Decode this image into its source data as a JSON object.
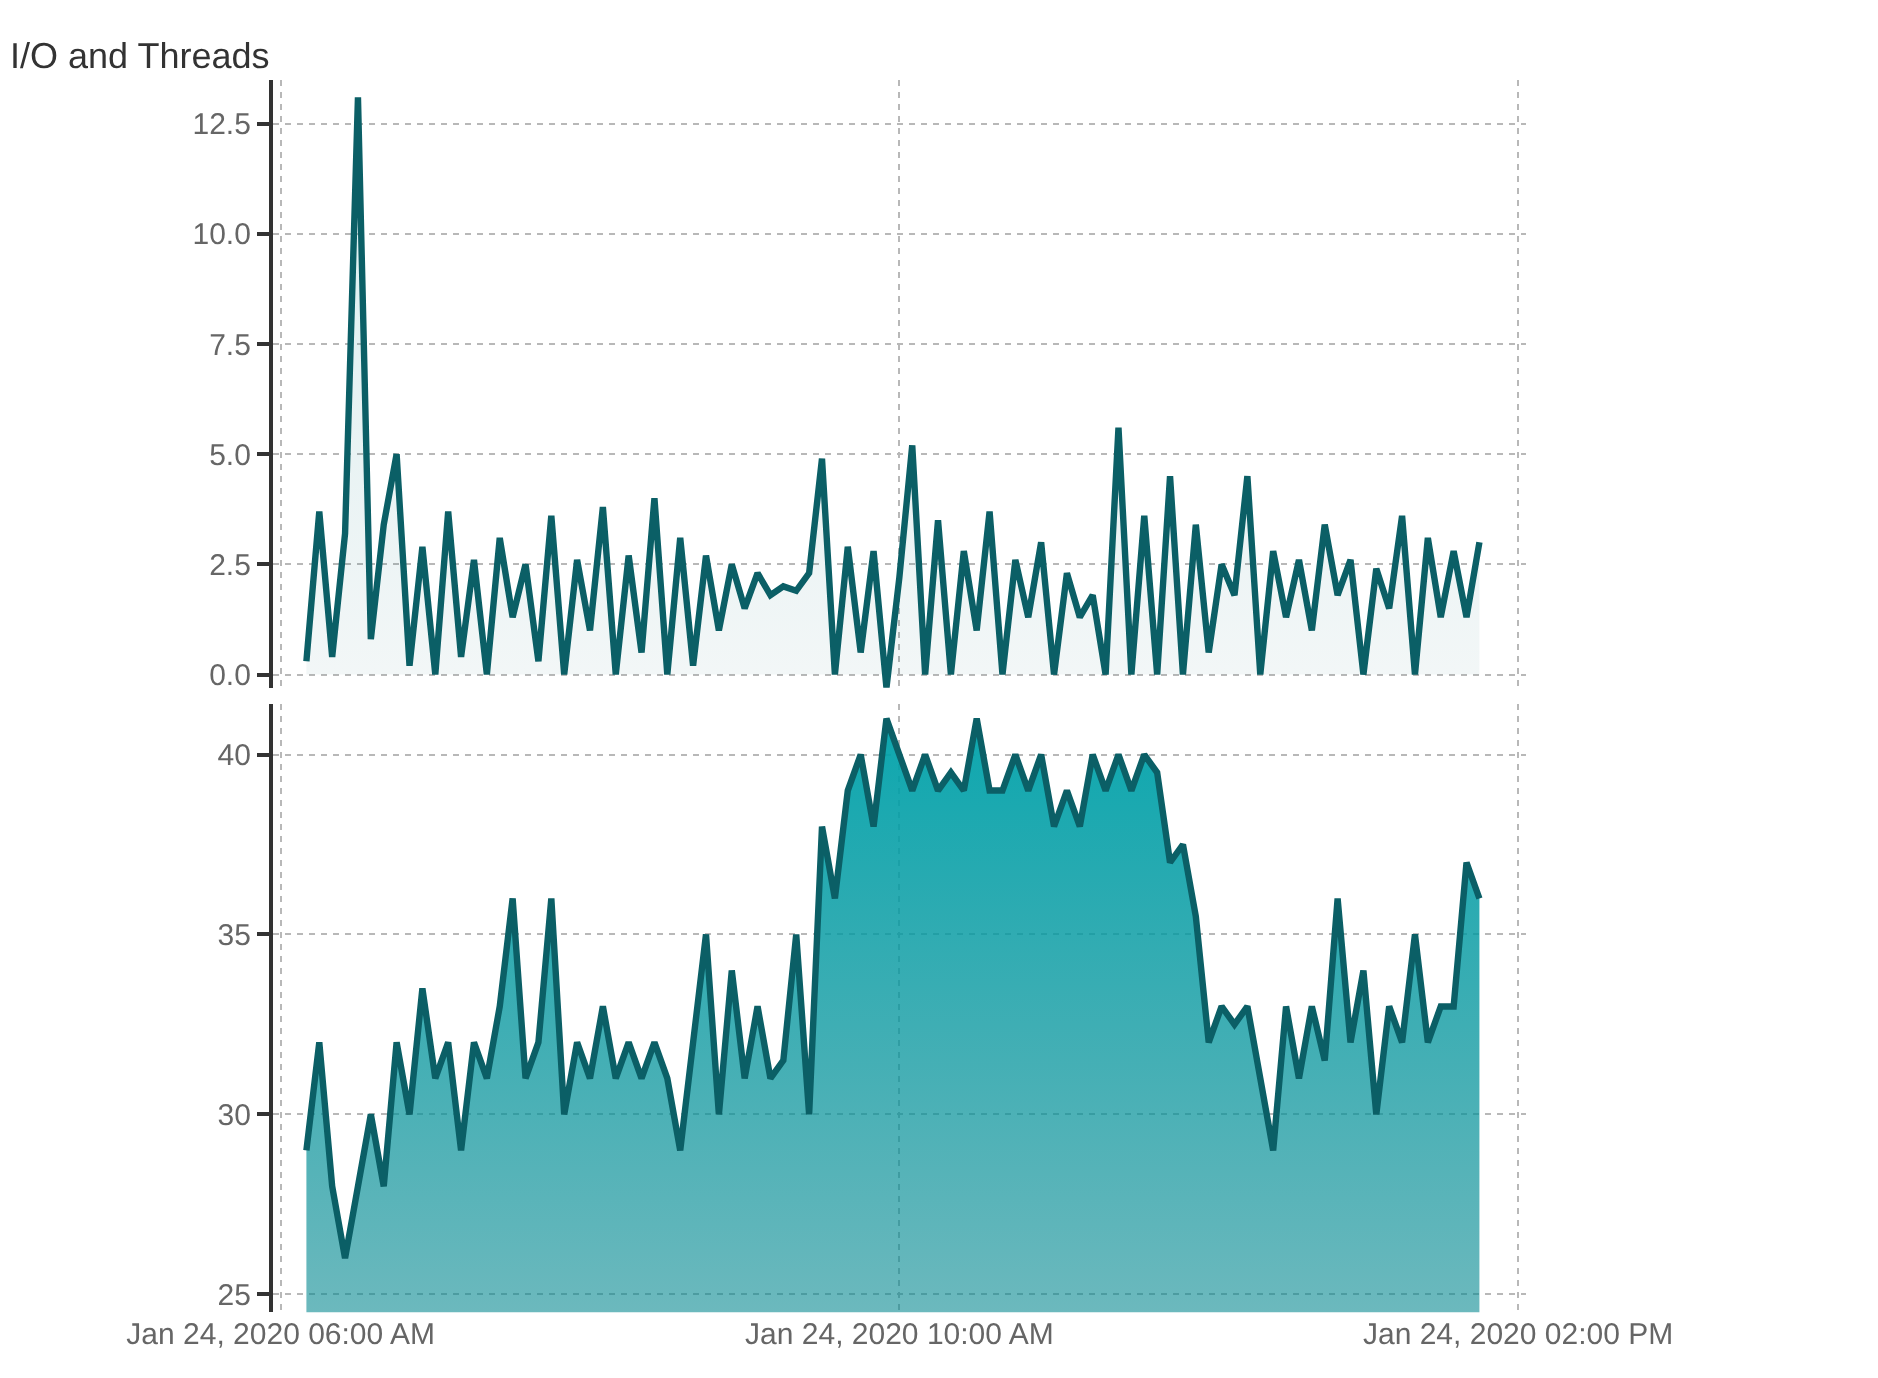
{
  "chart_data": [
    {
      "type": "area",
      "title": "I/O and Threads",
      "grid": true,
      "line_style": "solid",
      "marker": "none",
      "tick_labels": "y",
      "xlim": [
        "2020-01-24T05:57",
        "2020-01-24T14:03"
      ],
      "xticks": [
        {
          "value": "2020-01-24T06:00",
          "label": null
        },
        {
          "value": "2020-01-24T10:00",
          "label": null
        },
        {
          "value": "2020-01-24T14:00",
          "label": null
        }
      ],
      "ylim": [
        -0.3,
        13.5
      ],
      "yticks": [
        {
          "value": 0,
          "label": "0.0"
        },
        {
          "value": 2.5,
          "label": "2.5"
        },
        {
          "value": 5,
          "label": "5.0"
        },
        {
          "value": 7.5,
          "label": "7.5"
        },
        {
          "value": 10,
          "label": "10.0"
        },
        {
          "value": 12.5,
          "label": "12.5"
        }
      ],
      "series": [
        {
          "color": "#0b5f66",
          "values": [
            0.3,
            3.7,
            0.4,
            3.2,
            13.1,
            0.8,
            3.4,
            5.0,
            0.2,
            2.9,
            0.0,
            3.7,
            0.4,
            2.6,
            0.0,
            3.1,
            1.3,
            2.5,
            0.3,
            3.6,
            0.0,
            2.6,
            1.0,
            3.8,
            0.0,
            2.7,
            0.5,
            4.0,
            0.0,
            3.1,
            0.2,
            2.7,
            1.0,
            2.5,
            1.5,
            2.3,
            1.8,
            2.0,
            1.9,
            2.3,
            4.9,
            0.0,
            2.9,
            0.5,
            2.8,
            -0.3,
            2.2,
            5.2,
            0.0,
            3.5,
            0.0,
            2.8,
            1.0,
            3.7,
            0.0,
            2.6,
            1.3,
            3.0,
            0.0,
            2.3,
            1.3,
            1.8,
            0.0,
            5.6,
            0.0,
            3.6,
            0.0,
            4.5,
            0.0,
            3.4,
            0.5,
            2.5,
            1.8,
            4.5,
            0.0,
            2.8,
            1.3,
            2.6,
            1.0,
            3.4,
            1.8,
            2.6,
            0.0,
            2.4,
            1.5,
            3.6,
            0.0,
            3.1,
            1.3,
            2.8,
            1.3,
            3.0
          ]
        }
      ],
      "x": [
        "2020-01-24T06:10",
        "2020-01-24T06:15",
        "2020-01-24T06:20",
        "2020-01-24T06:25",
        "2020-01-24T06:30",
        "2020-01-24T06:35",
        "2020-01-24T06:40",
        "2020-01-24T06:45",
        "2020-01-24T06:50",
        "2020-01-24T06:55",
        "2020-01-24T07:00",
        "2020-01-24T07:05",
        "2020-01-24T07:10",
        "2020-01-24T07:15",
        "2020-01-24T07:20",
        "2020-01-24T07:25",
        "2020-01-24T07:30",
        "2020-01-24T07:35",
        "2020-01-24T07:40",
        "2020-01-24T07:45",
        "2020-01-24T07:50",
        "2020-01-24T07:55",
        "2020-01-24T08:00",
        "2020-01-24T08:05",
        "2020-01-24T08:10",
        "2020-01-24T08:15",
        "2020-01-24T08:20",
        "2020-01-24T08:25",
        "2020-01-24T08:30",
        "2020-01-24T08:35",
        "2020-01-24T08:40",
        "2020-01-24T08:45",
        "2020-01-24T08:50",
        "2020-01-24T08:55",
        "2020-01-24T09:00",
        "2020-01-24T09:05",
        "2020-01-24T09:10",
        "2020-01-24T09:15",
        "2020-01-24T09:20",
        "2020-01-24T09:25",
        "2020-01-24T09:30",
        "2020-01-24T09:35",
        "2020-01-24T09:40",
        "2020-01-24T09:45",
        "2020-01-24T09:50",
        "2020-01-24T09:55",
        "2020-01-24T10:00",
        "2020-01-24T10:05",
        "2020-01-24T10:10",
        "2020-01-24T10:15",
        "2020-01-24T10:20",
        "2020-01-24T10:25",
        "2020-01-24T10:30",
        "2020-01-24T10:35",
        "2020-01-24T10:40",
        "2020-01-24T10:45",
        "2020-01-24T10:50",
        "2020-01-24T10:55",
        "2020-01-24T11:00",
        "2020-01-24T11:05",
        "2020-01-24T11:10",
        "2020-01-24T11:15",
        "2020-01-24T11:20",
        "2020-01-24T11:25",
        "2020-01-24T11:30",
        "2020-01-24T11:35",
        "2020-01-24T11:40",
        "2020-01-24T11:45",
        "2020-01-24T11:50",
        "2020-01-24T11:55",
        "2020-01-24T12:00",
        "2020-01-24T12:05",
        "2020-01-24T12:10",
        "2020-01-24T12:15",
        "2020-01-24T12:20",
        "2020-01-24T12:25",
        "2020-01-24T12:30",
        "2020-01-24T12:35",
        "2020-01-24T12:40",
        "2020-01-24T12:45",
        "2020-01-24T12:50",
        "2020-01-24T12:55",
        "2020-01-24T13:00",
        "2020-01-24T13:05",
        "2020-01-24T13:10",
        "2020-01-24T13:15",
        "2020-01-24T13:20",
        "2020-01-24T13:25",
        "2020-01-24T13:30",
        "2020-01-24T13:35",
        "2020-01-24T13:40",
        "2020-01-24T13:45"
      ]
    },
    {
      "type": "area",
      "grid": true,
      "line_style": "solid",
      "marker": "none",
      "xlim": [
        "2020-01-24T05:57",
        "2020-01-24T14:03"
      ],
      "xticks": [
        {
          "value": "2020-01-24T06:00",
          "label": "Jan 24, 2020 06:00 AM"
        },
        {
          "value": "2020-01-24T10:00",
          "label": "Jan 24, 2020 10:00 AM"
        },
        {
          "value": "2020-01-24T14:00",
          "label": "Jan 24, 2020 02:00 PM"
        }
      ],
      "ylim": [
        24.5,
        41.4
      ],
      "yticks": [
        25,
        30,
        35,
        40
      ],
      "series": [
        {
          "color": "#0b5f66",
          "values": [
            29,
            32,
            28,
            26,
            28,
            30,
            28,
            32,
            30,
            33.5,
            31,
            32,
            29,
            32,
            31,
            33,
            36,
            31,
            32,
            36,
            30,
            32,
            31,
            33,
            31,
            32,
            31,
            32,
            31,
            29,
            32,
            35,
            30,
            34,
            31,
            33,
            31,
            31.5,
            35,
            30,
            38,
            36,
            39,
            40,
            38,
            41,
            40,
            39,
            40,
            39,
            39.5,
            39,
            41,
            39,
            39,
            40,
            39,
            40,
            38,
            39,
            38,
            40,
            39,
            40,
            39,
            40,
            39.5,
            37,
            37.5,
            35.5,
            32,
            33,
            32.5,
            33,
            31,
            29,
            33,
            31,
            33,
            31.5,
            36,
            32,
            34,
            30,
            33,
            32,
            35,
            32,
            33,
            33,
            37,
            36
          ]
        }
      ],
      "x": [
        "2020-01-24T06:10",
        "2020-01-24T06:15",
        "2020-01-24T06:20",
        "2020-01-24T06:25",
        "2020-01-24T06:30",
        "2020-01-24T06:35",
        "2020-01-24T06:40",
        "2020-01-24T06:45",
        "2020-01-24T06:50",
        "2020-01-24T06:55",
        "2020-01-24T07:00",
        "2020-01-24T07:05",
        "2020-01-24T07:10",
        "2020-01-24T07:15",
        "2020-01-24T07:20",
        "2020-01-24T07:25",
        "2020-01-24T07:30",
        "2020-01-24T07:35",
        "2020-01-24T07:40",
        "2020-01-24T07:45",
        "2020-01-24T07:50",
        "2020-01-24T07:55",
        "2020-01-24T08:00",
        "2020-01-24T08:05",
        "2020-01-24T08:10",
        "2020-01-24T08:15",
        "2020-01-24T08:20",
        "2020-01-24T08:25",
        "2020-01-24T08:30",
        "2020-01-24T08:35",
        "2020-01-24T08:40",
        "2020-01-24T08:45",
        "2020-01-24T08:50",
        "2020-01-24T08:55",
        "2020-01-24T09:00",
        "2020-01-24T09:05",
        "2020-01-24T09:10",
        "2020-01-24T09:15",
        "2020-01-24T09:20",
        "2020-01-24T09:25",
        "2020-01-24T09:30",
        "2020-01-24T09:35",
        "2020-01-24T09:40",
        "2020-01-24T09:45",
        "2020-01-24T09:50",
        "2020-01-24T09:55",
        "2020-01-24T10:00",
        "2020-01-24T10:05",
        "2020-01-24T10:10",
        "2020-01-24T10:15",
        "2020-01-24T10:20",
        "2020-01-24T10:25",
        "2020-01-24T10:30",
        "2020-01-24T10:35",
        "2020-01-24T10:40",
        "2020-01-24T10:45",
        "2020-01-24T10:50",
        "2020-01-24T10:55",
        "2020-01-24T11:00",
        "2020-01-24T11:05",
        "2020-01-24T11:10",
        "2020-01-24T11:15",
        "2020-01-24T11:20",
        "2020-01-24T11:25",
        "2020-01-24T11:30",
        "2020-01-24T11:35",
        "2020-01-24T11:40",
        "2020-01-24T11:45",
        "2020-01-24T11:50",
        "2020-01-24T11:55",
        "2020-01-24T12:00",
        "2020-01-24T12:05",
        "2020-01-24T12:10",
        "2020-01-24T12:15",
        "2020-01-24T12:20",
        "2020-01-24T12:25",
        "2020-01-24T12:30",
        "2020-01-24T12:35",
        "2020-01-24T12:40",
        "2020-01-24T12:45",
        "2020-01-24T12:50",
        "2020-01-24T12:55",
        "2020-01-24T13:00",
        "2020-01-24T13:05",
        "2020-01-24T13:10",
        "2020-01-24T13:15",
        "2020-01-24T13:20",
        "2020-01-24T13:25",
        "2020-01-24T13:30",
        "2020-01-24T13:35",
        "2020-01-24T13:40",
        "2020-01-24T13:45"
      ]
    }
  ]
}
